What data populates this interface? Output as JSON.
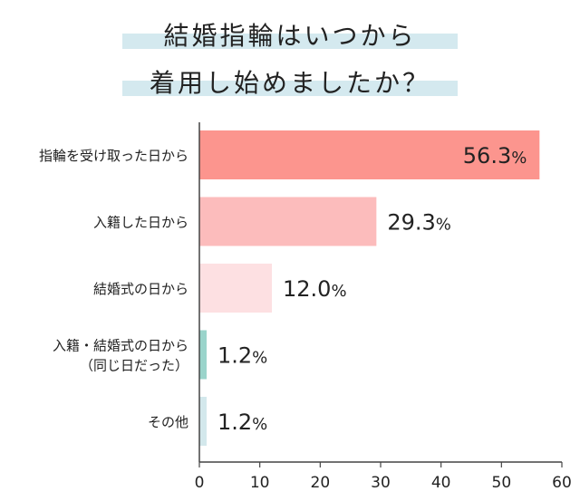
{
  "title_lines": [
    "結婚指輪はいつから",
    "着用し始めましたか？"
  ],
  "chart_data": {
    "type": "bar",
    "orientation": "horizontal",
    "title": "結婚指輪はいつから着用し始めましたか？",
    "categories": [
      [
        "指輪を受け取った日から"
      ],
      [
        "入籍した日から"
      ],
      [
        "結婚式の日から"
      ],
      [
        "入籍・結婚式の日から",
        "（同じ日だった）"
      ],
      [
        "その他"
      ]
    ],
    "values": [
      56.3,
      29.3,
      12.0,
      1.2,
      1.2
    ],
    "value_labels": [
      "56.3",
      "29.3",
      "12.0",
      "1.2",
      "1.2"
    ],
    "unit": "%",
    "xlim": [
      0,
      60
    ],
    "xticks": [
      0,
      10,
      20,
      30,
      40,
      50,
      60
    ],
    "colors": [
      "#fc958e",
      "#fcbcbc",
      "#fde0e2",
      "#9ad4cb",
      "#d3e8ec"
    ],
    "label_inside": [
      true,
      false,
      false,
      false,
      false
    ],
    "grid": false,
    "legend": "none"
  }
}
